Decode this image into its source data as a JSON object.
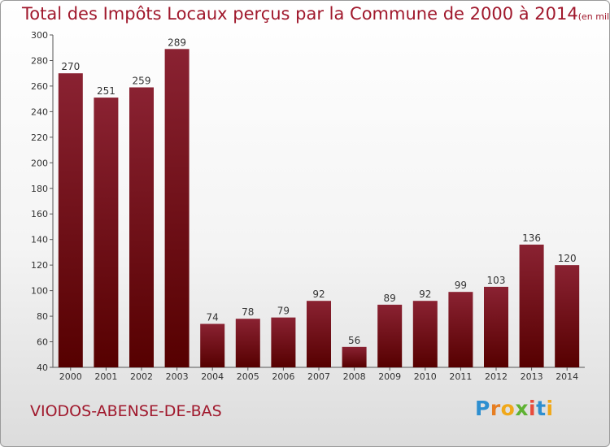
{
  "chart_data": {
    "type": "bar",
    "title": "Total des Impôts Locaux perçus par la Commune de 2000 à 2014",
    "unit_note": "(en milliers d'€)",
    "categories": [
      "2000",
      "2001",
      "2002",
      "2003",
      "2004",
      "2005",
      "2006",
      "2007",
      "2008",
      "2009",
      "2010",
      "2011",
      "2012",
      "2013",
      "2014"
    ],
    "values": [
      270,
      251,
      259,
      289,
      74,
      78,
      79,
      92,
      56,
      89,
      92,
      99,
      103,
      136,
      120
    ],
    "ylim": [
      40,
      300
    ],
    "yticks": [
      40,
      60,
      80,
      100,
      120,
      140,
      160,
      180,
      200,
      220,
      240,
      260,
      280,
      300
    ],
    "xlabel": "",
    "ylabel": "",
    "grid": false,
    "bar_color_top": "#8a2232",
    "bar_color_bottom": "#560000"
  },
  "commune_name": "VIODOS-ABENSE-DE-BAS",
  "logo": {
    "text": "Proxiti",
    "letter_colors": [
      "#2e8fd0",
      "#e67e22",
      "#f0a81a",
      "#5fb233",
      "#e84c3d",
      "#2e8fd0",
      "#f0a81a"
    ]
  }
}
